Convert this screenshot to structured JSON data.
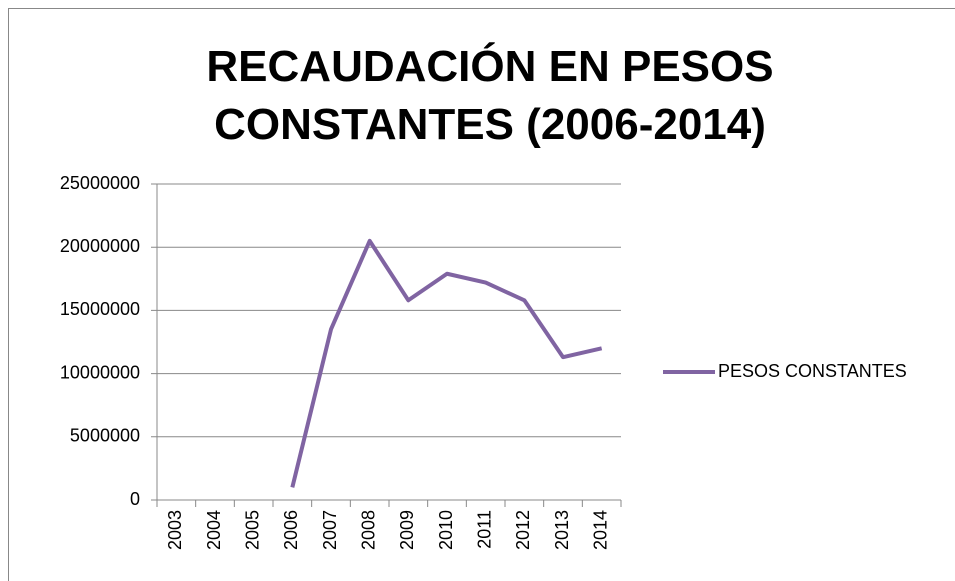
{
  "chart_data": {
    "type": "line",
    "title": "RECAUDACIÓN EN PESOS CONSTANTES (2006-2014)",
    "categories": [
      "2003",
      "2004",
      "2005",
      "2006",
      "2007",
      "2008",
      "2009",
      "2010",
      "2011",
      "2012",
      "2013",
      "2014"
    ],
    "series": [
      {
        "name": "PESOS CONSTANTES",
        "color": "#8064a2",
        "values": [
          null,
          null,
          null,
          1000000,
          13500000,
          20500000,
          15800000,
          17900000,
          17200000,
          15800000,
          11300000,
          12000000
        ]
      }
    ],
    "ylim": [
      0,
      25000000
    ],
    "yticks": [
      0,
      5000000,
      10000000,
      15000000,
      20000000,
      25000000
    ],
    "grid": true,
    "legend": "right"
  }
}
